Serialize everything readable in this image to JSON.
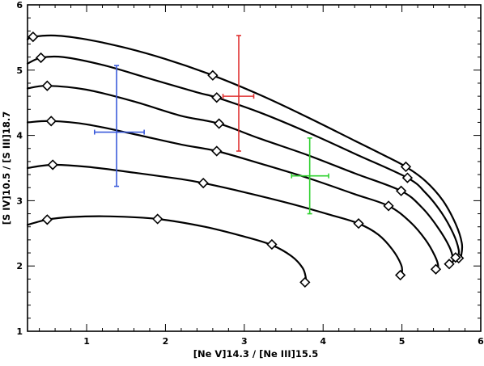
{
  "chart_data": {
    "type": "line",
    "title": "",
    "xlabel": "[Ne V]14.3 / [Ne III]15.5",
    "ylabel": "[S IV]10.5 / [S III]18.7",
    "xlim": [
      0.25,
      6
    ],
    "ylim": [
      1,
      6
    ],
    "xticks": [
      1,
      2,
      3,
      4,
      5,
      6
    ],
    "yticks": [
      1,
      2,
      3,
      4,
      5,
      6
    ],
    "grid": false,
    "legend": "none",
    "colors": {
      "axis": "#000000",
      "curve": "#000000",
      "blue": "#3b5bdb",
      "red": "#e03131",
      "green": "#2fd12f"
    },
    "series": [
      {
        "line": [
          [
            0.25,
            5.47
          ],
          [
            0.32,
            5.51
          ],
          [
            0.6,
            5.53
          ],
          [
            1.0,
            5.47
          ],
          [
            1.5,
            5.34
          ],
          [
            2.0,
            5.17
          ],
          [
            2.6,
            4.92
          ],
          [
            3.2,
            4.62
          ],
          [
            3.8,
            4.28
          ],
          [
            4.4,
            3.92
          ],
          [
            4.8,
            3.68
          ],
          [
            5.05,
            3.52
          ],
          [
            5.3,
            3.3
          ],
          [
            5.52,
            3.0
          ],
          [
            5.68,
            2.65
          ],
          [
            5.76,
            2.35
          ],
          [
            5.75,
            2.15
          ],
          [
            5.72,
            2.1
          ]
        ],
        "markers": [
          [
            0.32,
            5.51
          ],
          [
            2.6,
            4.92
          ],
          [
            5.05,
            3.52
          ],
          [
            5.72,
            2.12
          ]
        ]
      },
      {
        "line": [
          [
            0.25,
            5.1
          ],
          [
            0.42,
            5.19
          ],
          [
            0.7,
            5.2
          ],
          [
            1.2,
            5.08
          ],
          [
            1.8,
            4.87
          ],
          [
            2.4,
            4.66
          ],
          [
            2.65,
            4.58
          ],
          [
            3.2,
            4.35
          ],
          [
            3.8,
            4.05
          ],
          [
            4.4,
            3.72
          ],
          [
            5.07,
            3.35
          ],
          [
            5.3,
            3.12
          ],
          [
            5.5,
            2.82
          ],
          [
            5.65,
            2.5
          ],
          [
            5.72,
            2.25
          ],
          [
            5.71,
            2.15
          ],
          [
            5.68,
            2.12
          ]
        ],
        "markers": [
          [
            0.42,
            5.19
          ],
          [
            2.65,
            4.58
          ],
          [
            5.07,
            3.35
          ],
          [
            5.68,
            2.13
          ]
        ]
      },
      {
        "line": [
          [
            0.25,
            4.72
          ],
          [
            0.5,
            4.76
          ],
          [
            1.0,
            4.7
          ],
          [
            1.6,
            4.52
          ],
          [
            2.2,
            4.3
          ],
          [
            2.68,
            4.18
          ],
          [
            3.2,
            3.95
          ],
          [
            3.8,
            3.7
          ],
          [
            4.4,
            3.42
          ],
          [
            4.99,
            3.15
          ],
          [
            5.25,
            2.9
          ],
          [
            5.45,
            2.6
          ],
          [
            5.6,
            2.3
          ],
          [
            5.65,
            2.1
          ],
          [
            5.63,
            2.05
          ],
          [
            5.6,
            2.03
          ]
        ],
        "markers": [
          [
            0.5,
            4.76
          ],
          [
            2.68,
            4.18
          ],
          [
            4.99,
            3.15
          ],
          [
            5.6,
            2.03
          ]
        ]
      },
      {
        "line": [
          [
            0.25,
            4.2
          ],
          [
            0.55,
            4.22
          ],
          [
            1.0,
            4.17
          ],
          [
            1.6,
            4.02
          ],
          [
            2.2,
            3.86
          ],
          [
            2.65,
            3.76
          ],
          [
            3.2,
            3.57
          ],
          [
            3.8,
            3.35
          ],
          [
            4.4,
            3.1
          ],
          [
            4.83,
            2.92
          ],
          [
            5.1,
            2.68
          ],
          [
            5.3,
            2.4
          ],
          [
            5.42,
            2.15
          ],
          [
            5.46,
            2.0
          ],
          [
            5.43,
            1.95
          ]
        ],
        "markers": [
          [
            0.55,
            4.22
          ],
          [
            2.65,
            3.76
          ],
          [
            4.83,
            2.92
          ],
          [
            5.43,
            1.95
          ]
        ]
      },
      {
        "line": [
          [
            0.25,
            3.5
          ],
          [
            0.57,
            3.55
          ],
          [
            1.0,
            3.52
          ],
          [
            1.6,
            3.43
          ],
          [
            2.2,
            3.33
          ],
          [
            2.48,
            3.27
          ],
          [
            3.0,
            3.13
          ],
          [
            3.6,
            2.95
          ],
          [
            4.1,
            2.78
          ],
          [
            4.45,
            2.65
          ],
          [
            4.7,
            2.48
          ],
          [
            4.88,
            2.25
          ],
          [
            4.99,
            2.02
          ],
          [
            5.0,
            1.9
          ],
          [
            4.98,
            1.85
          ]
        ],
        "markers": [
          [
            0.57,
            3.55
          ],
          [
            2.48,
            3.27
          ],
          [
            4.45,
            2.65
          ],
          [
            4.98,
            1.86
          ]
        ]
      },
      {
        "line": [
          [
            0.25,
            2.63
          ],
          [
            0.5,
            2.71
          ],
          [
            0.8,
            2.75
          ],
          [
            1.3,
            2.76
          ],
          [
            1.9,
            2.72
          ],
          [
            2.5,
            2.6
          ],
          [
            3.0,
            2.45
          ],
          [
            3.35,
            2.32
          ],
          [
            3.6,
            2.15
          ],
          [
            3.74,
            1.97
          ],
          [
            3.78,
            1.82
          ],
          [
            3.77,
            1.75
          ]
        ],
        "markers": [
          [
            0.5,
            2.71
          ],
          [
            1.9,
            2.72
          ],
          [
            3.35,
            2.33
          ],
          [
            3.77,
            1.75
          ]
        ]
      }
    ],
    "errorbars": [
      {
        "color": "#3b5bdb",
        "x": 1.38,
        "y": 4.05,
        "x_err": [
          1.1,
          1.73
        ],
        "y_err": [
          3.22,
          5.07
        ]
      },
      {
        "color": "#e03131",
        "x": 2.93,
        "y": 4.6,
        "x_err": [
          2.73,
          3.12
        ],
        "y_err": [
          3.76,
          5.53
        ]
      },
      {
        "color": "#2fd12f",
        "x": 3.83,
        "y": 3.38,
        "x_err": [
          3.6,
          4.07
        ],
        "y_err": [
          2.8,
          3.96
        ]
      }
    ]
  }
}
